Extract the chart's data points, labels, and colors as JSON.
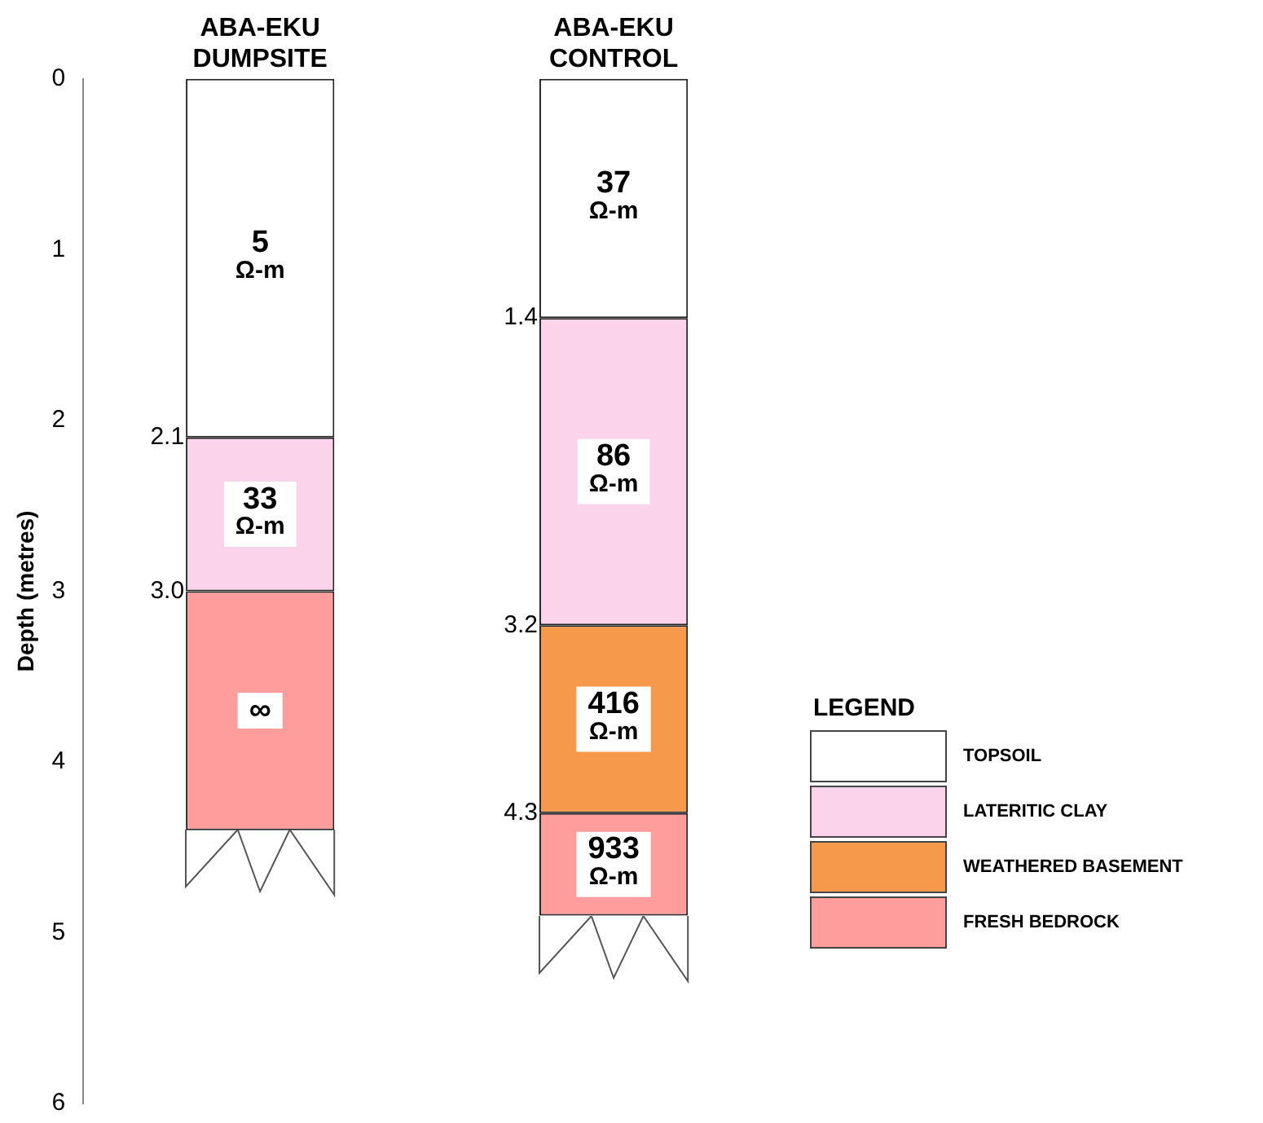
{
  "chart_data": {
    "type": "bar",
    "stacked": true,
    "categories": [
      "ABA-EKU DUMPSITE",
      "ABA-EKU CONTROL"
    ],
    "ylabel": "Depth (metres)",
    "ylim": [
      6,
      0
    ],
    "yticks": [
      0,
      1,
      2,
      3,
      4,
      5,
      6
    ],
    "grid": false,
    "legend": "right",
    "legend_title": "LEGEND",
    "series": [
      {
        "name": "TOPSOIL",
        "color": "#ffffff",
        "values": [
          2.1,
          1.4
        ]
      },
      {
        "name": "LATERITIC CLAY",
        "color": "#fbd3ea",
        "values": [
          0.9,
          1.8
        ]
      },
      {
        "name": "WEATHERED BASEMENT",
        "color": "#f7994a",
        "values": [
          null,
          1.1
        ]
      },
      {
        "name": "FRESH BEDROCK",
        "color": "#ff9c9c",
        "values": [
          1.4,
          0.6
        ]
      }
    ],
    "annotations": [
      "5 Ω-m",
      "33 Ω-m",
      "∞",
      "37 Ω-m",
      "86 Ω-m",
      "416 Ω-m",
      "933 Ω-m",
      "2.1",
      "3.0",
      "1.4",
      "3.2",
      "4.3"
    ]
  }
}
